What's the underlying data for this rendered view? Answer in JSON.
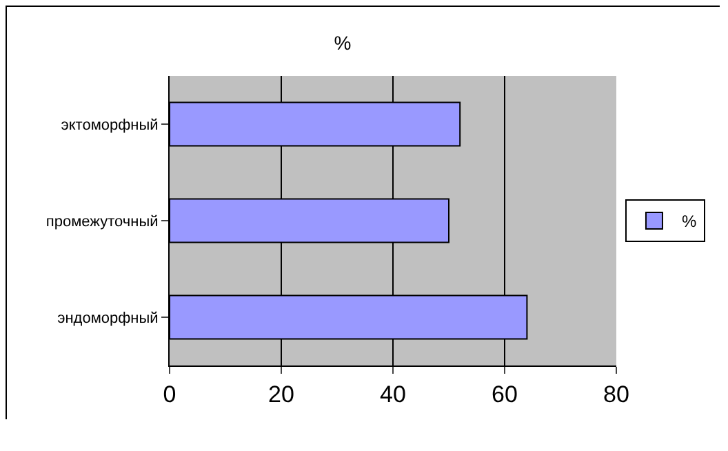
{
  "chart_data": {
    "type": "bar",
    "orientation": "horizontal",
    "title": "%",
    "categories": [
      "эктоморфный",
      "промежуточный",
      "эндоморфный"
    ],
    "series": [
      {
        "name": "%",
        "color": "#9999ff",
        "values": [
          52,
          50,
          64
        ]
      }
    ],
    "xlim": [
      0,
      80
    ],
    "xticks": [
      0,
      20,
      40,
      60,
      80
    ],
    "grid": "x",
    "legend": "right"
  }
}
